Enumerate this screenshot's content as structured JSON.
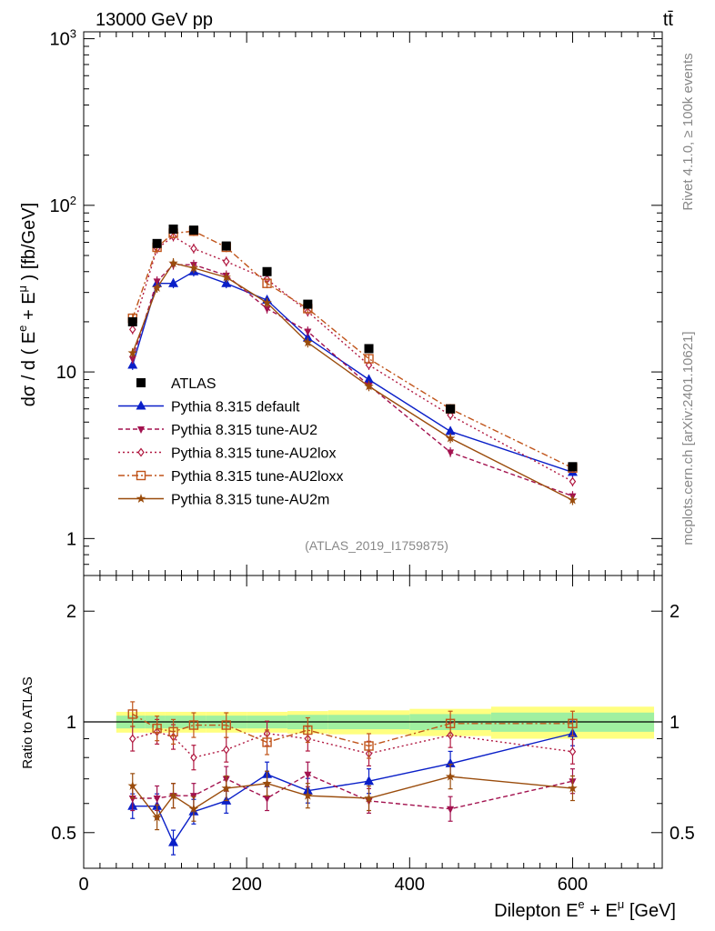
{
  "header": {
    "energy_label": "13000 GeV pp",
    "process_label": "tt̄"
  },
  "side_labels": {
    "rivet": "Rivet 4.1.0, ≥ 100k events",
    "site": "mcplots.cern.ch [arXiv:2401.10621]"
  },
  "analysis_label": "(ATLAS_2019_I1759875)",
  "colors": {
    "data": "#000000",
    "default": "#0a1fc8",
    "au2": "#a3124f",
    "au2lox": "#b01840",
    "au2loxx": "#c0541a",
    "au2m": "#9a4c0c",
    "band_green": "#a0f0a0",
    "band_yellow": "#ffff80"
  },
  "chart_data": [
    {
      "type": "line",
      "panel": "main",
      "ylabel": "dσ / d ( E^e + E^μ ) [fb/GeV]",
      "yscale": "log",
      "ylim": [
        0.6,
        1100
      ],
      "xlim": [
        0,
        710
      ],
      "ytick_labels": [
        "1",
        "10",
        "10^2",
        "10^3"
      ],
      "legend_position": "middle-left",
      "x": [
        60,
        90,
        110,
        135,
        175,
        225,
        275,
        350,
        450,
        600
      ],
      "series": [
        {
          "name": "ATLAS",
          "marker": "square",
          "values": [
            20,
            59,
            72,
            71,
            57,
            40,
            25.5,
            13.8,
            6.0,
            2.7
          ]
        },
        {
          "name": "Pythia 8.315 default",
          "marker": "triangle-up",
          "values": [
            11,
            34,
            34,
            40,
            34,
            27,
            16,
            9,
            4.4,
            2.5
          ]
        },
        {
          "name": "Pythia 8.315 tune-AU2",
          "marker": "triangle-down",
          "values": [
            12,
            35,
            44,
            44,
            38,
            24,
            17.5,
            8.3,
            3.3,
            1.8
          ]
        },
        {
          "name": "Pythia 8.315 tune-AU2lox",
          "marker": "diamond",
          "values": [
            18,
            55,
            65,
            55,
            46,
            36,
            23,
            11,
            5.5,
            2.2
          ]
        },
        {
          "name": "Pythia 8.315 tune-AU2loxx",
          "marker": "open-square",
          "values": [
            21,
            56,
            68,
            70,
            56,
            34,
            24,
            12,
            6.0,
            2.65
          ]
        },
        {
          "name": "Pythia 8.315 tune-AU2m",
          "marker": "star",
          "values": [
            13,
            32,
            45,
            42,
            37,
            26,
            15,
            8.2,
            4.0,
            1.7
          ]
        }
      ]
    },
    {
      "type": "line",
      "panel": "ratio",
      "ylabel": "Ratio to ATLAS",
      "xlabel": "Dilepton E^e + E^μ [GeV]",
      "yscale": "log",
      "ylim": [
        0.4,
        2.5
      ],
      "xlim": [
        0,
        710
      ],
      "xtick_labels": [
        "0",
        "200",
        "400",
        "600"
      ],
      "ytick_labels": [
        "0.5",
        "1",
        "2"
      ],
      "x": [
        60,
        90,
        110,
        135,
        175,
        225,
        275,
        350,
        450,
        600
      ],
      "uncertainty_band": {
        "edges": [
          40,
          75,
          100,
          120,
          150,
          200,
          250,
          300,
          400,
          500,
          700
        ],
        "green_half_width": [
          0.04,
          0.04,
          0.04,
          0.04,
          0.04,
          0.04,
          0.045,
          0.045,
          0.05,
          0.06
        ],
        "yellow_half_width": [
          0.065,
          0.065,
          0.065,
          0.065,
          0.065,
          0.065,
          0.07,
          0.075,
          0.085,
          0.1
        ]
      },
      "series": [
        {
          "name": "Pythia 8.315 default",
          "values": [
            0.59,
            0.59,
            0.47,
            0.57,
            0.61,
            0.72,
            0.65,
            0.69,
            0.77,
            0.93
          ]
        },
        {
          "name": "Pythia 8.315 tune-AU2",
          "values": [
            0.62,
            0.62,
            0.63,
            0.63,
            0.7,
            0.62,
            0.72,
            0.61,
            0.58,
            0.69
          ]
        },
        {
          "name": "Pythia 8.315 tune-AU2lox",
          "values": [
            0.9,
            0.94,
            0.91,
            0.8,
            0.84,
            0.93,
            0.9,
            0.82,
            0.92,
            0.83
          ]
        },
        {
          "name": "Pythia 8.315 tune-AU2loxx",
          "values": [
            1.05,
            0.96,
            0.94,
            0.98,
            0.98,
            0.88,
            0.95,
            0.86,
            0.99,
            0.99
          ]
        },
        {
          "name": "Pythia 8.315 tune-AU2m",
          "values": [
            0.67,
            0.55,
            0.63,
            0.58,
            0.66,
            0.68,
            0.63,
            0.62,
            0.71,
            0.66
          ]
        }
      ]
    }
  ]
}
